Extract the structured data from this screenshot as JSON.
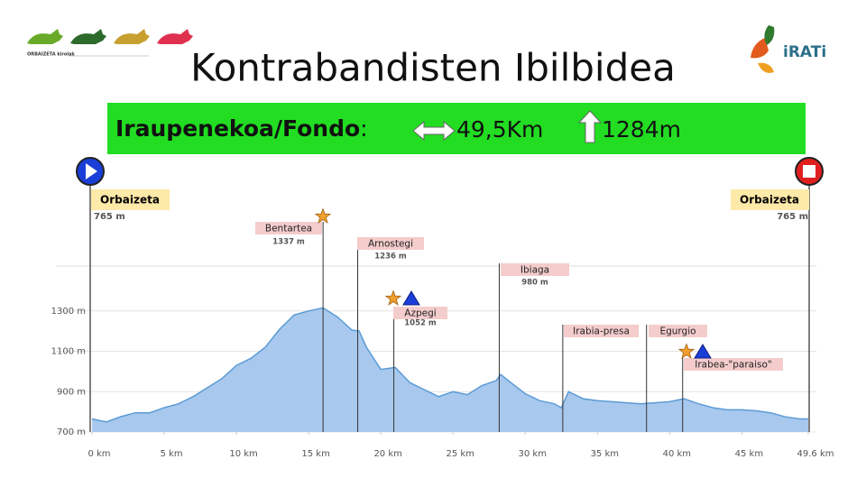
{
  "header": {
    "title": "Kontrabandisten Ibilbidea",
    "logo_left": "ORBAIZETA kirolak",
    "logo_right": "iRATi"
  },
  "banner": {
    "label": "Iraupenekoa/Fondo",
    "colon": ":",
    "distance": "49,5Km",
    "climb": "1284m"
  },
  "chart_data": {
    "type": "area",
    "color": "#a8c8ee",
    "line_color": "#5b9bd5",
    "x": [
      0,
      1,
      2,
      3,
      4,
      5,
      6,
      7,
      8,
      9,
      10,
      11,
      12,
      13,
      14,
      15,
      16,
      17,
      18,
      18.5,
      19,
      20,
      21,
      22,
      23,
      24,
      25,
      26,
      27,
      28,
      28.3,
      29,
      30,
      31,
      32,
      32.5,
      33,
      34,
      35,
      36,
      37,
      38,
      39,
      40,
      41,
      42,
      43,
      44,
      45,
      46,
      47,
      48,
      49,
      49.6
    ],
    "values": [
      765,
      750,
      776,
      795,
      795,
      820,
      840,
      875,
      920,
      965,
      1030,
      1065,
      1120,
      1210,
      1280,
      1300,
      1315,
      1270,
      1205,
      1200,
      1120,
      1010,
      1020,
      945,
      910,
      875,
      900,
      885,
      930,
      955,
      985,
      945,
      890,
      855,
      840,
      820,
      900,
      865,
      855,
      850,
      845,
      840,
      845,
      850,
      865,
      840,
      820,
      810,
      810,
      805,
      795,
      775,
      765,
      765
    ],
    "xlim": [
      0,
      49.6
    ],
    "ylim": [
      700,
      1500
    ],
    "xticks": [
      {
        "value": 0,
        "label": "0 km"
      },
      {
        "value": 5,
        "label": "5 km"
      },
      {
        "value": 10,
        "label": "10 km"
      },
      {
        "value": 15,
        "label": "15 km"
      },
      {
        "value": 20,
        "label": "20 km"
      },
      {
        "value": 25,
        "label": "25 km"
      },
      {
        "value": 30,
        "label": "30 km"
      },
      {
        "value": 35,
        "label": "35 km"
      },
      {
        "value": 40,
        "label": "40 km"
      },
      {
        "value": 45,
        "label": "45 km"
      },
      {
        "value": 49.6,
        "label": "49.6 km"
      }
    ],
    "yticks": [
      {
        "value": 700,
        "label": "700 m"
      },
      {
        "value": 900,
        "label": "900 m"
      },
      {
        "value": 1100,
        "label": "1100 m"
      },
      {
        "value": 1300,
        "label": "1300 m"
      }
    ],
    "endpoints": [
      {
        "name": "Orbaizeta",
        "elevation": "765 m"
      },
      {
        "name": "Orbaizeta",
        "elevation": "765 m"
      }
    ],
    "annotations": [
      {
        "label": "Bentartea",
        "elevation": "1337 m",
        "x": 16
      },
      {
        "label": "Arnostegi",
        "elevation": "1236 m",
        "x": 18.4
      },
      {
        "label": "Azpegi",
        "elevation": "1052 m",
        "x": 20.9
      },
      {
        "label": "Ibiaga",
        "elevation": "980 m",
        "x": 28.2
      },
      {
        "label": "Irabia-presa",
        "x": 32.6
      },
      {
        "label": "Egurgio",
        "x": 38.4
      },
      {
        "label": "Irabea-\"paraiso\"",
        "x": 40.9
      }
    ]
  }
}
